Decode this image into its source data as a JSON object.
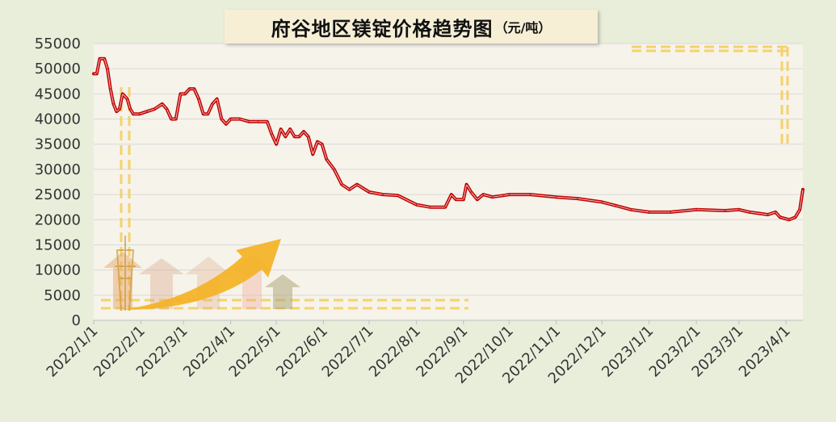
{
  "chart_data": {
    "type": "line",
    "title": "府谷地区镁锭价格趋势图",
    "title_unit": "（元/吨）",
    "ylim": [
      0,
      55000
    ],
    "yticks": [
      0,
      5000,
      10000,
      15000,
      20000,
      25000,
      30000,
      35000,
      40000,
      45000,
      50000,
      55000
    ],
    "x_start": "2022/1/1",
    "x_end": "2023/4/12",
    "xticks": [
      "2022/1/1",
      "2022/2/1",
      "2022/3/1",
      "2022/4/1",
      "2022/5/1",
      "2022/6/1",
      "2022/7/1",
      "2022/8/1",
      "2022/9/1",
      "2022/10/1",
      "2022/11/1",
      "2022/12/1",
      "2023/1/1",
      "2023/2/1",
      "2023/3/1",
      "2023/4/1"
    ],
    "grid": true,
    "legend": "none",
    "line_color": "#c00000",
    "series": [
      {
        "x": [
          "2022/1/1",
          "2022/1/3",
          "2022/1/5",
          "2022/1/8",
          "2022/1/10",
          "2022/1/12",
          "2022/1/14",
          "2022/1/16",
          "2022/1/18",
          "2022/1/20",
          "2022/1/23",
          "2022/1/25",
          "2022/1/27",
          "2022/1/31",
          "2022/2/5",
          "2022/2/10",
          "2022/2/15",
          "2022/2/18",
          "2022/2/21",
          "2022/2/24",
          "2022/2/27",
          "2022/3/2",
          "2022/3/5",
          "2022/3/8",
          "2022/3/11",
          "2022/3/14",
          "2022/3/17",
          "2022/3/20",
          "2022/3/23",
          "2022/3/26",
          "2022/3/29",
          "2022/4/1",
          "2022/4/7",
          "2022/4/13",
          "2022/4/19",
          "2022/4/25",
          "2022/4/28",
          "2022/5/1",
          "2022/5/4",
          "2022/5/7",
          "2022/5/10",
          "2022/5/13",
          "2022/5/16",
          "2022/5/19",
          "2022/5/22",
          "2022/5/25",
          "2022/5/28",
          "2022/5/31",
          "2022/6/3",
          "2022/6/8",
          "2022/6/13",
          "2022/6/18",
          "2022/6/23",
          "2022/7/1",
          "2022/7/10",
          "2022/7/20",
          "2022/8/1",
          "2022/8/10",
          "2022/8/20",
          "2022/8/24",
          "2022/8/27",
          "2022/9/1",
          "2022/9/3",
          "2022/9/6",
          "2022/9/10",
          "2022/9/14",
          "2022/9/20",
          "2022/9/27",
          "2022/10/1",
          "2022/10/15",
          "2022/11/1",
          "2022/11/15",
          "2022/12/1",
          "2022/12/10",
          "2022/12/20",
          "2023/1/1",
          "2023/1/15",
          "2023/2/1",
          "2023/2/20",
          "2023/3/1",
          "2023/3/8",
          "2023/3/20",
          "2023/3/25",
          "2023/3/28",
          "2023/4/3",
          "2023/4/7",
          "2023/4/10",
          "2023/4/12"
        ],
        "values": [
          49000,
          49000,
          52000,
          52000,
          50000,
          46000,
          43000,
          41500,
          42000,
          45000,
          44000,
          42000,
          41000,
          41000,
          41500,
          42000,
          43000,
          42000,
          40000,
          40000,
          45000,
          45000,
          46000,
          46000,
          44000,
          41000,
          41000,
          43000,
          44000,
          40000,
          39000,
          40000,
          40000,
          39500,
          39500,
          39500,
          37000,
          35000,
          38000,
          36500,
          38000,
          36500,
          36500,
          37500,
          36500,
          33000,
          35500,
          35000,
          32000,
          30000,
          27000,
          26000,
          27000,
          25500,
          25000,
          24800,
          23000,
          22500,
          22500,
          25000,
          24000,
          24000,
          27000,
          25500,
          24000,
          25000,
          24500,
          24800,
          25000,
          25000,
          24500,
          24200,
          23500,
          22800,
          22000,
          21500,
          21500,
          22000,
          21800,
          22000,
          21500,
          21000,
          21500,
          20500,
          20000,
          20500,
          22000,
          26000
        ]
      }
    ]
  }
}
